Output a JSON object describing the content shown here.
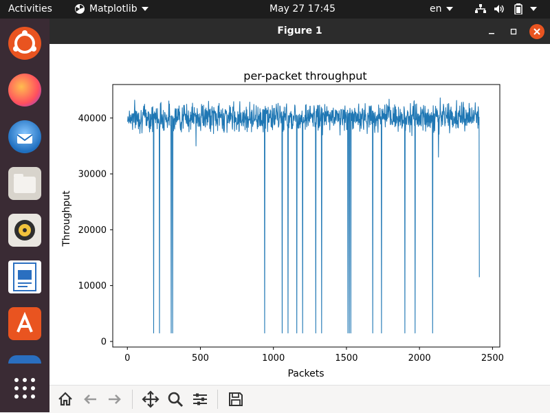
{
  "topbar": {
    "activities": "Activities",
    "app_name": "Matplotlib",
    "clock": "May 27  17:45",
    "keyboard_layout": "en",
    "indicators": [
      "network-icon",
      "volume-icon",
      "battery-icon",
      "system-menu-chevron-icon"
    ]
  },
  "dock": {
    "items": [
      {
        "name": "ubuntu-software-icon",
        "color": "#e95420"
      },
      {
        "name": "firefox-icon",
        "color": "#ff7139"
      },
      {
        "name": "thunderbird-icon",
        "color": "#1f6fbf"
      },
      {
        "name": "files-icon",
        "color": "#d8d4cc"
      },
      {
        "name": "rhythmbox-icon",
        "color": "#f0c33c"
      },
      {
        "name": "libreoffice-writer-icon",
        "color": "#2a6fc0"
      },
      {
        "name": "app-store-icon",
        "color": "#e95420"
      }
    ],
    "show_apps_icon": "grid-icon"
  },
  "window": {
    "title": "Figure 1",
    "buttons": [
      "minimize-icon",
      "maximize-icon",
      "close-icon"
    ]
  },
  "toolbar": {
    "buttons": [
      "home-icon",
      "back-arrow-icon",
      "forward-arrow-icon",
      "pan-move-icon",
      "zoom-magnifier-icon",
      "configure-subplots-icon",
      "save-icon"
    ]
  },
  "chart_data": {
    "type": "line",
    "title": "per-packet throughput",
    "xlabel": "Packets",
    "ylabel": "Throughput",
    "xlim": [
      -100,
      2550
    ],
    "ylim": [
      -1000,
      46000
    ],
    "xticks": [
      0,
      500,
      1000,
      1500,
      2000,
      2500
    ],
    "yticks": [
      0,
      10000,
      20000,
      30000,
      40000
    ],
    "x_start": 0,
    "x_end": 2410,
    "baseline_range": [
      36500,
      43800
    ],
    "series": [
      {
        "color": "#1f77b4",
        "dips": [
          {
            "x": 180,
            "y": 1500
          },
          {
            "x": 220,
            "y": 1500
          },
          {
            "x": 300,
            "y": 1500
          },
          {
            "x": 310,
            "y": 1500
          },
          {
            "x": 470,
            "y": 35000
          },
          {
            "x": 940,
            "y": 1500
          },
          {
            "x": 1060,
            "y": 1500
          },
          {
            "x": 1100,
            "y": 1500
          },
          {
            "x": 1160,
            "y": 1500
          },
          {
            "x": 1200,
            "y": 1500
          },
          {
            "x": 1290,
            "y": 1500
          },
          {
            "x": 1330,
            "y": 1500
          },
          {
            "x": 1510,
            "y": 1500
          },
          {
            "x": 1520,
            "y": 1500
          },
          {
            "x": 1530,
            "y": 1500
          },
          {
            "x": 1680,
            "y": 1500
          },
          {
            "x": 1740,
            "y": 1500
          },
          {
            "x": 1900,
            "y": 1500
          },
          {
            "x": 1970,
            "y": 1500
          },
          {
            "x": 2090,
            "y": 1500
          },
          {
            "x": 2130,
            "y": 33000
          },
          {
            "x": 2410,
            "y": 11500
          }
        ]
      }
    ]
  }
}
